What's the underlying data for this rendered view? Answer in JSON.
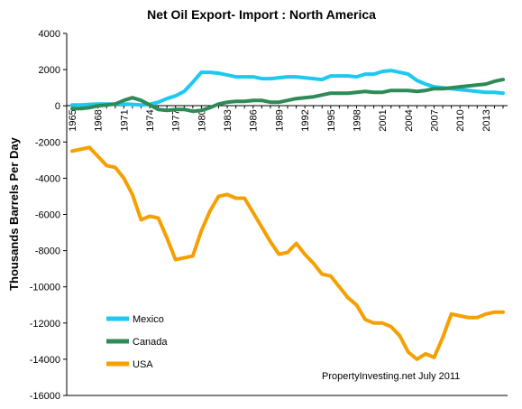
{
  "chart_data": {
    "type": "line",
    "title": "Net Oil Export- Import : North America",
    "xlabel": "",
    "ylabel": "Thousands Barrels Per Day",
    "ylim": [
      -16000,
      4000
    ],
    "yticks": [
      "4000",
      "2000",
      "0",
      "-2000",
      "-4000",
      "-6000",
      "-8000",
      "-10000",
      "-12000",
      "-14000",
      "-16000"
    ],
    "xticks": [
      "1965",
      "1968",
      "1971",
      "1974",
      "1977",
      "1980",
      "1983",
      "1986",
      "1989",
      "1992",
      "1995",
      "1998",
      "2001",
      "2004",
      "2007",
      "2010",
      "2013"
    ],
    "x": [
      1965,
      1966,
      1967,
      1968,
      1969,
      1970,
      1971,
      1972,
      1973,
      1974,
      1975,
      1976,
      1977,
      1978,
      1979,
      1980,
      1981,
      1982,
      1983,
      1984,
      1985,
      1986,
      1987,
      1988,
      1989,
      1990,
      1991,
      1992,
      1993,
      1994,
      1995,
      1996,
      1997,
      1998,
      1999,
      2000,
      2001,
      2002,
      2003,
      2004,
      2005,
      2006,
      2007,
      2008,
      2009,
      2010,
      2011,
      2012,
      2013,
      2014,
      2015
    ],
    "series": [
      {
        "name": "Mexico",
        "color": "#1ec8f0",
        "values": [
          50,
          50,
          80,
          100,
          100,
          100,
          100,
          80,
          50,
          80,
          200,
          400,
          550,
          800,
          1300,
          1850,
          1850,
          1800,
          1700,
          1600,
          1600,
          1600,
          1500,
          1500,
          1550,
          1600,
          1600,
          1550,
          1500,
          1450,
          1650,
          1650,
          1650,
          1600,
          1750,
          1750,
          1900,
          1950,
          1850,
          1750,
          1400,
          1200,
          1050,
          1000,
          950,
          900,
          850,
          800,
          750,
          750,
          700
        ]
      },
      {
        "name": "Canada",
        "color": "#2e8b57",
        "values": [
          -150,
          -150,
          -100,
          0,
          50,
          100,
          300,
          450,
          300,
          50,
          -200,
          -250,
          -200,
          -200,
          -300,
          -250,
          -100,
          100,
          200,
          250,
          250,
          300,
          300,
          200,
          200,
          300,
          400,
          450,
          500,
          600,
          700,
          700,
          700,
          750,
          800,
          750,
          750,
          850,
          850,
          850,
          800,
          850,
          950,
          950,
          1000,
          1050,
          1100,
          1150,
          1200,
          1350,
          1450
        ]
      },
      {
        "name": "USA",
        "color": "#f5a000",
        "values": [
          -2500,
          -2400,
          -2300,
          -2800,
          -3300,
          -3400,
          -4000,
          -4900,
          -6300,
          -6100,
          -6200,
          -7300,
          -8500,
          -8400,
          -8300,
          -6900,
          -5800,
          -5000,
          -4900,
          -5100,
          -5100,
          -5900,
          -6700,
          -7500,
          -8200,
          -8100,
          -7600,
          -8200,
          -8700,
          -9300,
          -9400,
          -10000,
          -10600,
          -11000,
          -11800,
          -12000,
          -12000,
          -12200,
          -12700,
          -13600,
          -14000,
          -13700,
          -13900,
          -12800,
          -11500,
          -11600,
          -11700,
          -11700,
          -11500,
          -11400,
          -11400
        ]
      }
    ],
    "grid": false,
    "legend_position": "bottom-left",
    "annotation": "PropertyInvesting.net  July 2011"
  }
}
